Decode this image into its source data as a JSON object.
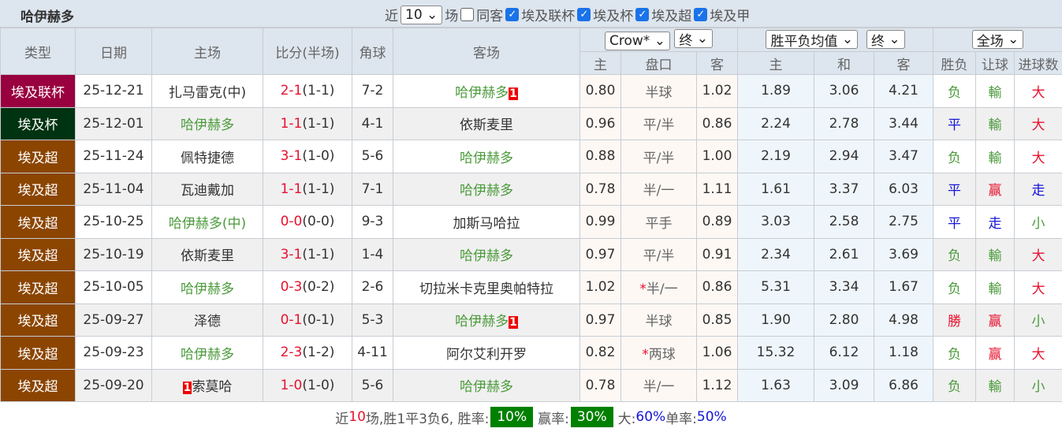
{
  "title": "哈伊赫多",
  "filters": {
    "near_label": "近",
    "count": "10",
    "unit": "场",
    "same_label": "同客",
    "same_checked": false,
    "competitions": [
      {
        "label": "埃及联杯",
        "checked": true
      },
      {
        "label": "埃及杯",
        "checked": true
      },
      {
        "label": "埃及超",
        "checked": true
      },
      {
        "label": "埃及甲",
        "checked": true
      }
    ]
  },
  "headers": {
    "type": "类型",
    "date": "日期",
    "home": "主场",
    "score": "比分(半场)",
    "corner": "角球",
    "away": "客场",
    "company_select": "Crow*",
    "odds_time_select": "终",
    "x12_select": "胜平负均值",
    "x12_time_select": "终",
    "period_select": "全场",
    "odds_home": "主",
    "handicap": "盘口",
    "odds_away": "客",
    "x12_home": "主",
    "x12_draw": "和",
    "x12_away": "客",
    "result": "胜负",
    "ah_result": "让球",
    "ou_result": "进球数"
  },
  "colors": {
    "联杯": "#99003f",
    "杯": "#003311",
    "超": "#8b4500",
    "team": "#4a9a3a",
    "red": "#e8112d",
    "blue": "#1515d8",
    "win_pill": "#008000"
  },
  "rows": [
    {
      "type": "埃及联杯",
      "tc": "联杯",
      "date": "25-12-21",
      "home": "扎马雷克(中)",
      "home_hl": false,
      "home_rc": "",
      "score": "2-1",
      "half": "(1-1)",
      "corner": "7-2",
      "away": "哈伊赫多",
      "away_hl": true,
      "away_rc": "1",
      "oh": "0.80",
      "hc": "半球",
      "star": false,
      "oa": "1.02",
      "xh": "1.89",
      "xd": "3.06",
      "xa": "4.21",
      "res": "负",
      "ah": "輸",
      "ou": "大"
    },
    {
      "type": "埃及杯",
      "tc": "杯",
      "date": "25-12-01",
      "home": "哈伊赫多",
      "home_hl": true,
      "home_rc": "",
      "score": "1-1",
      "half": "(1-1)",
      "corner": "4-1",
      "away": "依斯麦里",
      "away_hl": false,
      "away_rc": "",
      "oh": "0.96",
      "hc": "平/半",
      "star": false,
      "oa": "0.86",
      "xh": "2.24",
      "xd": "2.78",
      "xa": "3.44",
      "res": "平",
      "ah": "輸",
      "ou": "大"
    },
    {
      "type": "埃及超",
      "tc": "超",
      "date": "25-11-24",
      "home": "佩特捷德",
      "home_hl": false,
      "home_rc": "",
      "score": "3-1",
      "half": "(1-0)",
      "corner": "5-6",
      "away": "哈伊赫多",
      "away_hl": true,
      "away_rc": "",
      "oh": "0.88",
      "hc": "平/半",
      "star": false,
      "oa": "1.00",
      "xh": "2.19",
      "xd": "2.94",
      "xa": "3.47",
      "res": "负",
      "ah": "輸",
      "ou": "大"
    },
    {
      "type": "埃及超",
      "tc": "超",
      "date": "25-11-04",
      "home": "瓦迪戴加",
      "home_hl": false,
      "home_rc": "",
      "score": "1-1",
      "half": "(1-1)",
      "corner": "7-1",
      "away": "哈伊赫多",
      "away_hl": true,
      "away_rc": "",
      "oh": "0.78",
      "hc": "半/一",
      "star": false,
      "oa": "1.11",
      "xh": "1.61",
      "xd": "3.37",
      "xa": "6.03",
      "res": "平",
      "ah": "赢",
      "ou": "走"
    },
    {
      "type": "埃及超",
      "tc": "超",
      "date": "25-10-25",
      "home": "哈伊赫多(中)",
      "home_hl": true,
      "home_rc": "",
      "score": "0-0",
      "half": "(0-0)",
      "corner": "9-3",
      "away": "加斯马哈拉",
      "away_hl": false,
      "away_rc": "",
      "oh": "0.99",
      "hc": "平手",
      "star": false,
      "oa": "0.89",
      "xh": "3.03",
      "xd": "2.58",
      "xa": "2.75",
      "res": "平",
      "ah": "走",
      "ou": "小"
    },
    {
      "type": "埃及超",
      "tc": "超",
      "date": "25-10-19",
      "home": "依斯麦里",
      "home_hl": false,
      "home_rc": "",
      "score": "3-1",
      "half": "(1-1)",
      "corner": "1-4",
      "away": "哈伊赫多",
      "away_hl": true,
      "away_rc": "",
      "oh": "0.97",
      "hc": "平/半",
      "star": false,
      "oa": "0.91",
      "xh": "2.34",
      "xd": "2.61",
      "xa": "3.69",
      "res": "负",
      "ah": "輸",
      "ou": "大"
    },
    {
      "type": "埃及超",
      "tc": "超",
      "date": "25-10-05",
      "home": "哈伊赫多",
      "home_hl": true,
      "home_rc": "",
      "score": "0-3",
      "half": "(0-2)",
      "corner": "2-6",
      "away": "切拉米卡克里奥帕特拉",
      "away_hl": false,
      "away_rc": "",
      "oh": "1.02",
      "hc": "半/一",
      "star": true,
      "oa": "0.86",
      "xh": "5.31",
      "xd": "3.34",
      "xa": "1.67",
      "res": "负",
      "ah": "輸",
      "ou": "大"
    },
    {
      "type": "埃及超",
      "tc": "超",
      "date": "25-09-27",
      "home": "泽德",
      "home_hl": false,
      "home_rc": "",
      "score": "0-1",
      "half": "(0-1)",
      "corner": "5-3",
      "away": "哈伊赫多",
      "away_hl": true,
      "away_rc": "1",
      "oh": "0.97",
      "hc": "半球",
      "star": false,
      "oa": "0.85",
      "xh": "1.90",
      "xd": "2.80",
      "xa": "4.98",
      "res": "勝",
      "ah": "赢",
      "ou": "小"
    },
    {
      "type": "埃及超",
      "tc": "超",
      "date": "25-09-23",
      "home": "哈伊赫多",
      "home_hl": true,
      "home_rc": "",
      "score": "2-3",
      "half": "(1-2)",
      "corner": "4-11",
      "away": "阿尔艾利开罗",
      "away_hl": false,
      "away_rc": "",
      "oh": "0.82",
      "hc": "两球",
      "star": true,
      "oa": "1.06",
      "xh": "15.32",
      "xd": "6.12",
      "xa": "1.18",
      "res": "负",
      "ah": "赢",
      "ou": "大"
    },
    {
      "type": "埃及超",
      "tc": "超",
      "date": "25-09-20",
      "home": "索莫哈",
      "home_hl": false,
      "home_rc": "1",
      "score": "1-0",
      "half": "(1-0)",
      "corner": "5-6",
      "away": "哈伊赫多",
      "away_hl": true,
      "away_rc": "",
      "oh": "0.78",
      "hc": "半/一",
      "star": false,
      "oa": "1.12",
      "xh": "1.63",
      "xd": "3.09",
      "xa": "6.86",
      "res": "负",
      "ah": "輸",
      "ou": "小"
    }
  ],
  "footer": {
    "p1": "近",
    "n": "10",
    "p2": "场,胜1平3负6, 胜率:",
    "win_rate": "10%",
    "p3": "赢率:",
    "ah_rate": "30%",
    "p4": "大:",
    "over_rate": "60%",
    "p5": " 单率:",
    "odd_rate": "50%"
  }
}
